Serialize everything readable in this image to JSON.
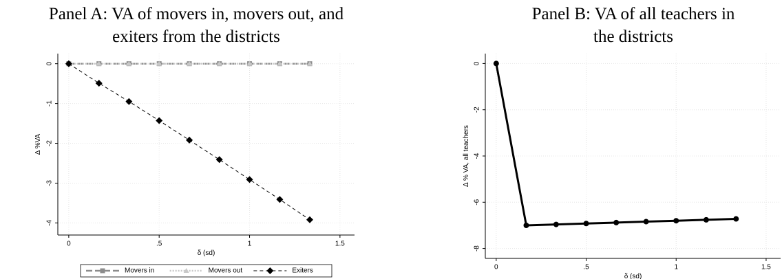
{
  "chart_data": [
    {
      "type": "line",
      "title": [
        "Panel A: VA of movers in, movers out, and",
        "exiters from the districts"
      ],
      "x_label": "δ (sd)",
      "y_label": "Δ %VA",
      "x": [
        0,
        0.167,
        0.333,
        0.5,
        0.667,
        0.833,
        1,
        1.167,
        1.333
      ],
      "series": [
        {
          "name": "Movers in",
          "color": "#8c8c8c",
          "line_style": "dashed",
          "marker": "square",
          "values": [
            0,
            0,
            0,
            0,
            0,
            0,
            0,
            0,
            0
          ]
        },
        {
          "name": "Movers out",
          "color": "#c8c8c8",
          "line_style": "dotted",
          "marker": "triangle",
          "values": [
            0,
            0,
            0,
            0,
            0,
            0,
            0,
            0,
            0
          ]
        },
        {
          "name": "Exiters",
          "color": "#000000",
          "line_style": "dashed-thin",
          "marker": "diamond",
          "values": [
            0,
            -0.49,
            -0.95,
            -1.43,
            -1.92,
            -2.41,
            -2.91,
            -3.41,
            -3.92
          ]
        }
      ],
      "xlim": [
        -0.03,
        1.55
      ],
      "xticks": [
        0,
        {
          "value": 0.5,
          "label": ".5"
        },
        1,
        1.5
      ],
      "ylim": [
        -4.2,
        0.15
      ],
      "yticks": [
        0,
        -1,
        -2,
        -3,
        -4
      ],
      "grid": true,
      "legend": "bottom"
    },
    {
      "type": "line",
      "title": [
        "Panel B: VA of all teachers in",
        "the districts"
      ],
      "x_label": "δ (sd)",
      "y_label": "Δ % VA, all teachers",
      "x": [
        0,
        0.167,
        0.333,
        0.5,
        0.667,
        0.833,
        1,
        1.167,
        1.333
      ],
      "series": [
        {
          "color": "#000000",
          "line_style": "solid",
          "marker": "circle",
          "values": [
            0,
            -7.0,
            -6.96,
            -6.92,
            -6.88,
            -6.84,
            -6.8,
            -6.76,
            -6.72
          ]
        }
      ],
      "xlim": [
        -0.03,
        1.55
      ],
      "xticks": [
        0,
        {
          "value": 0.5,
          "label": ".5"
        },
        1,
        1.5
      ],
      "ylim": [
        -8.25,
        0.25
      ],
      "yticks": [
        0,
        -2,
        -4,
        -6,
        -8
      ],
      "grid": true
    }
  ]
}
